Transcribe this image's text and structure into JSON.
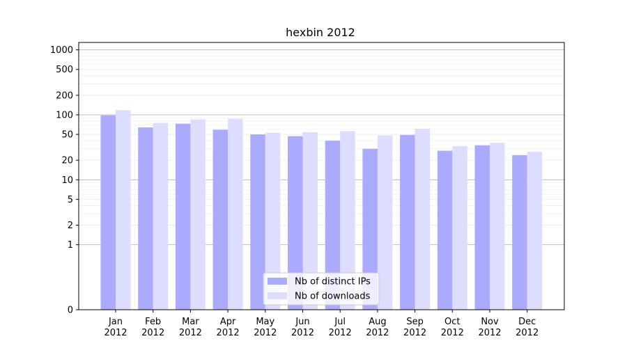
{
  "chart_data": {
    "type": "bar",
    "title": "hexbin 2012",
    "xlabel": "",
    "ylabel": "",
    "y_scale": "symlog",
    "ylim": [
      0,
      1300
    ],
    "y_ticks": [
      {
        "value": 0,
        "label": "0"
      },
      {
        "value": 1,
        "label": "1"
      },
      {
        "value": 2,
        "label": "2"
      },
      {
        "value": 5,
        "label": "5"
      },
      {
        "value": 10,
        "label": "10"
      },
      {
        "value": 20,
        "label": "20"
      },
      {
        "value": 50,
        "label": "50"
      },
      {
        "value": 100,
        "label": "100"
      },
      {
        "value": 200,
        "label": "200"
      },
      {
        "value": 500,
        "label": "500"
      },
      {
        "value": 1000,
        "label": "1000"
      }
    ],
    "grid": true,
    "legend_position": "lower-center",
    "categories": [
      {
        "month": "Jan",
        "year": "2012"
      },
      {
        "month": "Feb",
        "year": "2012"
      },
      {
        "month": "Mar",
        "year": "2012"
      },
      {
        "month": "Apr",
        "year": "2012"
      },
      {
        "month": "May",
        "year": "2012"
      },
      {
        "month": "Jun",
        "year": "2012"
      },
      {
        "month": "Jul",
        "year": "2012"
      },
      {
        "month": "Aug",
        "year": "2012"
      },
      {
        "month": "Sep",
        "year": "2012"
      },
      {
        "month": "Oct",
        "year": "2012"
      },
      {
        "month": "Nov",
        "year": "2012"
      },
      {
        "month": "Dec",
        "year": "2012"
      }
    ],
    "series": [
      {
        "name": "Nb of distinct IPs",
        "color": "#aaaaff",
        "values": [
          98,
          64,
          73,
          59,
          50,
          47,
          40,
          30,
          49,
          28,
          34,
          24
        ]
      },
      {
        "name": "Nb of downloads",
        "color": "#ddddff",
        "values": [
          118,
          75,
          85,
          87,
          53,
          54,
          56,
          48,
          61,
          33,
          37,
          27
        ]
      }
    ]
  }
}
